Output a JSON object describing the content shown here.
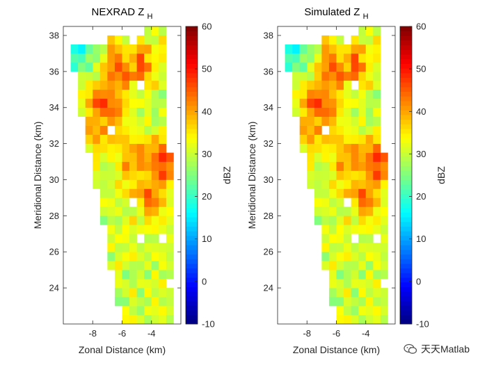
{
  "chart_data": [
    {
      "type": "heatmap",
      "title": "NEXRAD Z",
      "title_subscript": "H",
      "xlabel": "Zonal Distance (km)",
      "ylabel": "Meridional Distance (km)",
      "xlim": [
        -10,
        -2
      ],
      "ylim": [
        22,
        38.5
      ],
      "xticks": [
        -8,
        -6,
        -4
      ],
      "yticks": [
        24,
        26,
        28,
        30,
        32,
        34,
        36,
        38
      ],
      "cell_size_km": [
        0.5,
        0.5
      ],
      "swath": {
        "top_left": [
          -9.6,
          37.3
        ],
        "top_right": [
          -3.0,
          38.5
        ],
        "bottom_right": [
          -2.4,
          22.2
        ],
        "bottom_left": [
          -6.0,
          22.0
        ]
      },
      "reflectivity_centers_dBZ": [
        {
          "x": -7.2,
          "y": 34.2,
          "peak": 46
        },
        {
          "x": -6.3,
          "y": 36.0,
          "peak": 44
        },
        {
          "x": -4.8,
          "y": 36.5,
          "peak": 42
        },
        {
          "x": -3.3,
          "y": 30.8,
          "peak": 48
        },
        {
          "x": -4.2,
          "y": 29.5,
          "peak": 44
        },
        {
          "x": -7.4,
          "y": 33.0,
          "peak": 41
        },
        {
          "x": -5.2,
          "y": 31.2,
          "peak": 40
        }
      ],
      "background_dBZ": 30,
      "colorbar": {
        "label": "dBZ",
        "min": -10,
        "max": 60,
        "ticks": [
          -10,
          0,
          10,
          20,
          30,
          40,
          50,
          60
        ],
        "colormap": "jet"
      }
    },
    {
      "type": "heatmap",
      "title": "Simulated Z",
      "title_subscript": "H",
      "xlabel": "Zonal Distance (km)",
      "ylabel": "Meridional Distance (km)",
      "xlim": [
        -10,
        -2
      ],
      "ylim": [
        22,
        38.5
      ],
      "xticks": [
        -8,
        -6,
        -4
      ],
      "yticks": [
        24,
        26,
        28,
        30,
        32,
        34,
        36,
        38
      ],
      "cell_size_km": [
        0.5,
        0.5
      ],
      "swath": {
        "top_left": [
          -9.6,
          37.3
        ],
        "top_right": [
          -3.0,
          38.5
        ],
        "bottom_right": [
          -2.4,
          22.2
        ],
        "bottom_left": [
          -6.0,
          22.0
        ]
      },
      "reflectivity_centers_dBZ": [
        {
          "x": -7.2,
          "y": 34.2,
          "peak": 46
        },
        {
          "x": -6.3,
          "y": 36.0,
          "peak": 44
        },
        {
          "x": -4.8,
          "y": 36.5,
          "peak": 42
        },
        {
          "x": -3.3,
          "y": 30.8,
          "peak": 48
        },
        {
          "x": -4.2,
          "y": 29.5,
          "peak": 44
        },
        {
          "x": -7.4,
          "y": 33.0,
          "peak": 41
        },
        {
          "x": -5.2,
          "y": 31.2,
          "peak": 40
        }
      ],
      "background_dBZ": 30,
      "colorbar": {
        "label": "dBZ",
        "min": -10,
        "max": 60,
        "ticks": [
          -10,
          0,
          10,
          20,
          30,
          40,
          50,
          60
        ],
        "colormap": "jet"
      }
    }
  ],
  "watermark": {
    "text": "天天Matlab",
    "icon": "wechat-icon"
  }
}
